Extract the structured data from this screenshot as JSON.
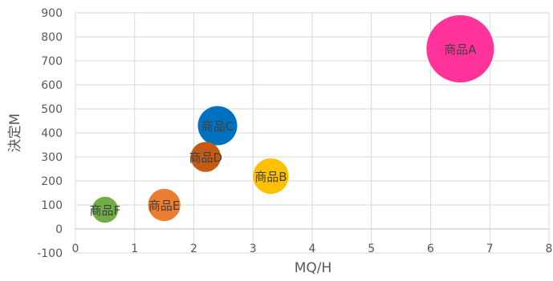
{
  "chart_data": {
    "type": "bubble",
    "title": "",
    "xlabel": "MQ/H",
    "ylabel": "決定M",
    "xlim": [
      0,
      8
    ],
    "ylim": [
      -100,
      900
    ],
    "x_ticks": [
      0,
      1,
      2,
      3,
      4,
      5,
      6,
      7,
      8
    ],
    "y_ticks": [
      -100,
      0,
      100,
      200,
      300,
      400,
      500,
      600,
      700,
      800,
      900
    ],
    "grid": true,
    "legend": "none",
    "points": [
      {
        "label": "商品A",
        "x": 6.5,
        "y": 750,
        "size": 100,
        "color": "#FF3399"
      },
      {
        "label": "商品B",
        "x": 3.3,
        "y": 220,
        "size": 28,
        "color": "#FFC000"
      },
      {
        "label": "商品C",
        "x": 2.4,
        "y": 430,
        "size": 34,
        "color": "#0070C0"
      },
      {
        "label": "商品D",
        "x": 2.2,
        "y": 300,
        "size": 20,
        "color": "#C55A11"
      },
      {
        "label": "商品E",
        "x": 1.5,
        "y": 100,
        "size": 23,
        "color": "#ED7D31"
      },
      {
        "label": "商品F",
        "x": 0.5,
        "y": 80,
        "size": 15,
        "color": "#70AD47"
      }
    ]
  }
}
